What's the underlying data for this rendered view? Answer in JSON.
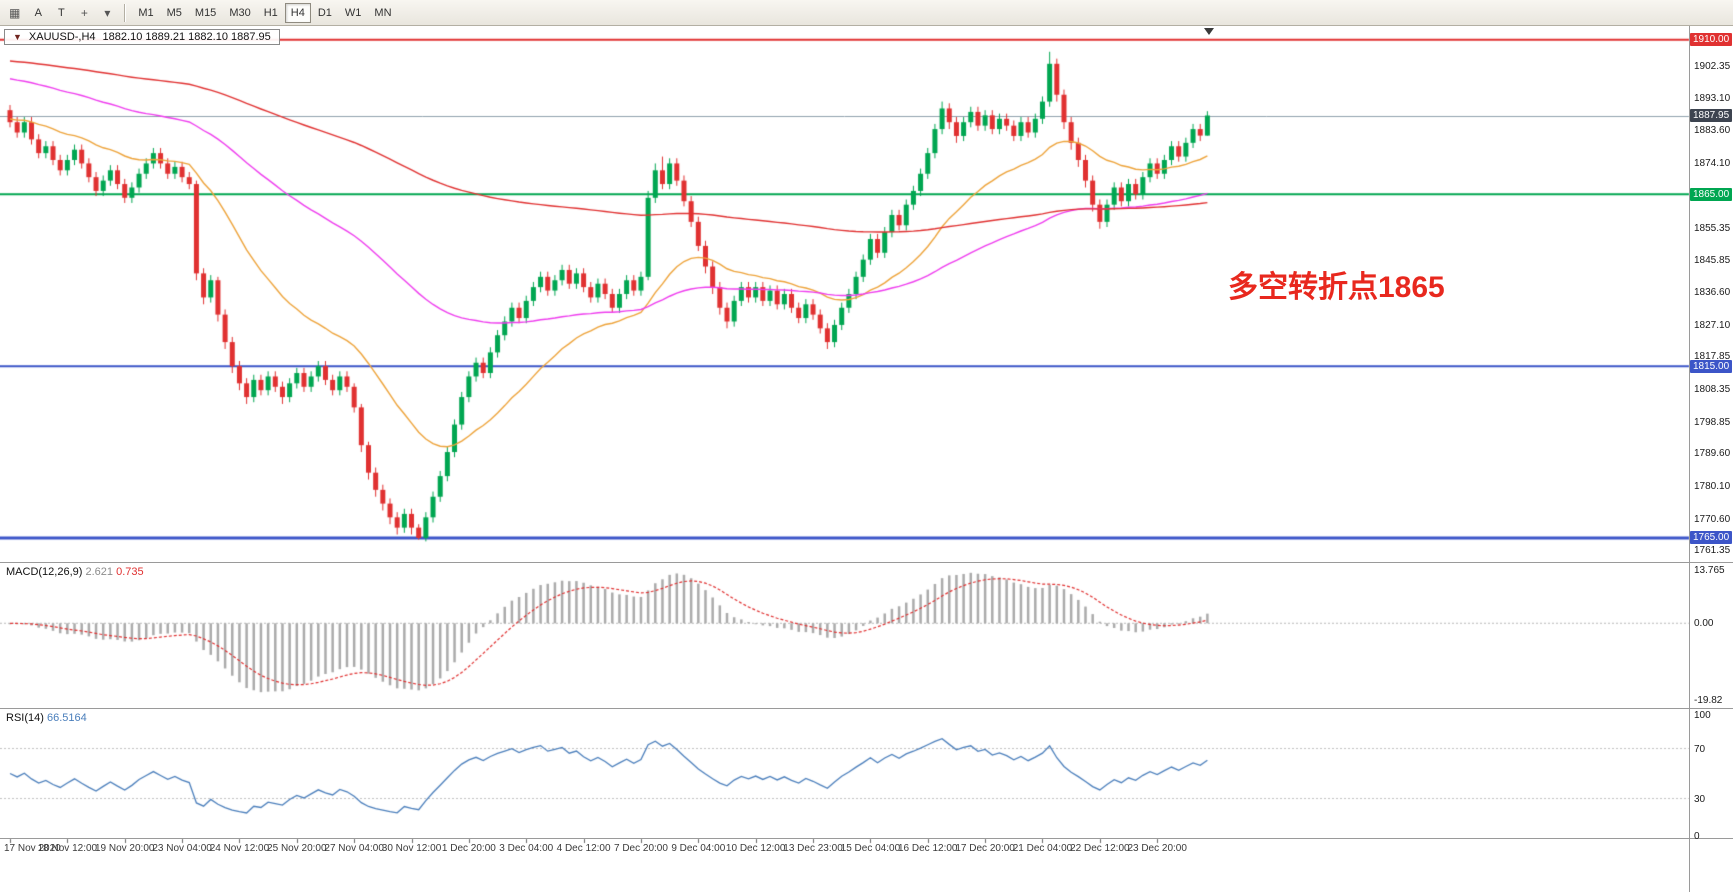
{
  "toolbar": {
    "tools": [
      {
        "name": "charts-grid-icon",
        "glyph": "▦"
      },
      {
        "name": "text-label-tool-button",
        "label": "A"
      },
      {
        "name": "text-tool-button",
        "label": "T"
      },
      {
        "name": "crosshair-icon",
        "glyph": "+"
      },
      {
        "name": "tools-dropdown-icon",
        "glyph": "▾"
      }
    ],
    "timeframes": [
      "M1",
      "M5",
      "M15",
      "M30",
      "H1",
      "H4",
      "D1",
      "W1",
      "MN"
    ],
    "active_timeframe": "H4"
  },
  "symbol_bar": {
    "collapse_glyph": "▼",
    "symbol": "XAUUSD-,H4",
    "ohlc_text": "1882.10 1889.21 1882.10 1887.95"
  },
  "annotation": {
    "text": "多空转折点1865",
    "color": "#e8281e"
  },
  "current_price": {
    "value": 1887.95,
    "label": "1887.95",
    "line_color": "#8fa0ad",
    "box_bg": "#3d4450"
  },
  "levels": [
    {
      "price": 1910.0,
      "label": "1910.00",
      "color": "#e03131",
      "width": 2
    },
    {
      "price": 1865.0,
      "label": "1865.00",
      "color": "#00a651",
      "width": 2
    },
    {
      "price": 1815.0,
      "label": "1815.00",
      "color": "#3c55c8",
      "width": 2
    },
    {
      "price": 1765.0,
      "label": "1765.00",
      "color": "#3c55c8",
      "width": 3
    }
  ],
  "price_ticks": [
    "1902.35",
    "1893.10",
    "1883.60",
    "1874.10",
    "1855.35",
    "1845.85",
    "1836.60",
    "1827.10",
    "1817.85",
    "1808.35",
    "1798.85",
    "1789.60",
    "1780.10",
    "1770.60",
    "1761.35"
  ],
  "indicators": {
    "macd": {
      "label": "MACD(12,26,9)",
      "main_value": "2.621",
      "signal_value": "0.735",
      "scale_labels": {
        "max": "13.765",
        "zero": "0.00",
        "min": "-19.82"
      },
      "scale_max": 13.765,
      "scale_min": -19.82,
      "histogram_color": "#ababab",
      "signal_color": "#e03131",
      "params": {
        "fast": 12,
        "slow": 26,
        "signal": 9
      }
    },
    "rsi": {
      "label": "RSI(14)",
      "value": "66.5164",
      "period": 14,
      "line_color": "#4a7ebb",
      "levels": [
        100,
        70,
        30,
        0
      ],
      "level_lines": [
        70,
        30
      ]
    }
  },
  "time_axis": {
    "candles_per_label": 8,
    "labels": [
      "17 Nov 2020",
      "18 Nov 12:00",
      "19 Nov 20:00",
      "23 Nov 04:00",
      "24 Nov 12:00",
      "25 Nov 20:00",
      "27 Nov 04:00",
      "30 Nov 12:00",
      "1 Dec 20:00",
      "3 Dec 04:00",
      "4 Dec 12:00",
      "7 Dec 20:00",
      "9 Dec 04:00",
      "10 Dec 12:00",
      "13 Dec 23:00",
      "15 Dec 04:00",
      "16 Dec 12:00",
      "17 Dec 20:00",
      "21 Dec 04:00",
      "22 Dec 12:00",
      "23 Dec 20:00"
    ]
  },
  "chart_data": {
    "type": "candlestick",
    "title": "XAUUSD-,H4",
    "ohlc_current": {
      "open": "1882.10",
      "high": "1889.21",
      "low": "1882.10",
      "close": "1887.95"
    },
    "up_color": "#00a651",
    "down_color": "#e03131",
    "price_range_top": 1914,
    "price_range_bottom": 1758,
    "moving_averages": [
      {
        "type": "ema",
        "period": 24,
        "seed": 1887,
        "color": "#eda33a"
      },
      {
        "type": "ema",
        "period": 75,
        "seed": 1899,
        "color": "#ee3cee"
      },
      {
        "type": "ema",
        "period": 200,
        "seed": 1904,
        "color": "#e03131"
      }
    ],
    "candles": [
      [
        1889.5,
        1891,
        1884.5,
        1886
      ],
      [
        1886,
        1887.5,
        1881.5,
        1883
      ],
      [
        1883,
        1887.5,
        1881.5,
        1886
      ],
      [
        1886,
        1887.5,
        1879.5,
        1881
      ],
      [
        1881,
        1882.5,
        1875.5,
        1877
      ],
      [
        1877,
        1880.5,
        1875.5,
        1879
      ],
      [
        1879,
        1880.5,
        1873.5,
        1875
      ],
      [
        1875,
        1876.5,
        1870.5,
        1872
      ],
      [
        1872,
        1876.5,
        1870.5,
        1875
      ],
      [
        1875,
        1879.5,
        1873.5,
        1878
      ],
      [
        1878,
        1879.5,
        1872.5,
        1874
      ],
      [
        1874,
        1875.5,
        1868.5,
        1870
      ],
      [
        1870,
        1871.5,
        1864.5,
        1866
      ],
      [
        1866,
        1870.5,
        1864.5,
        1869
      ],
      [
        1869,
        1873.5,
        1867.5,
        1872
      ],
      [
        1872,
        1873.5,
        1866.5,
        1868
      ],
      [
        1868,
        1869.5,
        1862.5,
        1864
      ],
      [
        1864,
        1868.5,
        1862.5,
        1867
      ],
      [
        1867,
        1872.5,
        1865.5,
        1871
      ],
      [
        1871,
        1875.5,
        1869.5,
        1874
      ],
      [
        1874,
        1878.5,
        1872.5,
        1877
      ],
      [
        1877,
        1878.5,
        1872.5,
        1874
      ],
      [
        1874,
        1875.5,
        1869.5,
        1871
      ],
      [
        1871,
        1874.5,
        1869.5,
        1873
      ],
      [
        1873,
        1874.5,
        1868.5,
        1870
      ],
      [
        1870,
        1871.5,
        1866.5,
        1868
      ],
      [
        1868,
        1869,
        1840,
        1842
      ],
      [
        1842,
        1843.5,
        1833,
        1835
      ],
      [
        1835,
        1841.5,
        1833.5,
        1840
      ],
      [
        1840,
        1841,
        1828,
        1830
      ],
      [
        1830,
        1831.5,
        1820,
        1822
      ],
      [
        1822,
        1823.5,
        1813,
        1815
      ],
      [
        1815,
        1816.5,
        1808,
        1810
      ],
      [
        1810,
        1811.5,
        1804,
        1806
      ],
      [
        1806,
        1812.5,
        1804.5,
        1811
      ],
      [
        1811,
        1812.5,
        1806.5,
        1808
      ],
      [
        1808,
        1813.5,
        1806.5,
        1812
      ],
      [
        1812,
        1813.5,
        1807.5,
        1809
      ],
      [
        1809,
        1810.5,
        1804,
        1806
      ],
      [
        1806,
        1811.5,
        1804.5,
        1810
      ],
      [
        1810,
        1814.5,
        1808.5,
        1813
      ],
      [
        1813,
        1814.5,
        1807.5,
        1809
      ],
      [
        1809,
        1813.5,
        1807.5,
        1812
      ],
      [
        1812,
        1816.5,
        1810.5,
        1815
      ],
      [
        1815,
        1816.5,
        1809.5,
        1811
      ],
      [
        1811,
        1812.5,
        1806.5,
        1808
      ],
      [
        1808,
        1813.5,
        1806.5,
        1812
      ],
      [
        1812,
        1813.5,
        1807.5,
        1809
      ],
      [
        1809,
        1810,
        1801.5,
        1803
      ],
      [
        1803,
        1804,
        1790,
        1792
      ],
      [
        1792,
        1793,
        1782,
        1784
      ],
      [
        1784,
        1785.5,
        1777,
        1779
      ],
      [
        1779,
        1780.5,
        1773,
        1775
      ],
      [
        1775,
        1776.5,
        1769,
        1771
      ],
      [
        1771,
        1772.5,
        1766,
        1768
      ],
      [
        1768,
        1773.5,
        1766.5,
        1772
      ],
      [
        1772,
        1773.5,
        1766,
        1768
      ],
      [
        1768,
        1769,
        1764.5,
        1765
      ],
      [
        1765,
        1772.5,
        1764,
        1771
      ],
      [
        1771,
        1778.5,
        1769.5,
        1777
      ],
      [
        1777,
        1784.5,
        1775.5,
        1783
      ],
      [
        1783,
        1791.5,
        1781.5,
        1790
      ],
      [
        1790,
        1799.5,
        1788.5,
        1798
      ],
      [
        1798,
        1807.5,
        1796.5,
        1806
      ],
      [
        1806,
        1813.5,
        1804.5,
        1812
      ],
      [
        1812,
        1817.5,
        1810.5,
        1816
      ],
      [
        1816,
        1817.5,
        1811.5,
        1813
      ],
      [
        1813,
        1820.5,
        1811.5,
        1819
      ],
      [
        1819,
        1825.5,
        1817.5,
        1824
      ],
      [
        1824,
        1829.5,
        1822.5,
        1828
      ],
      [
        1828,
        1833.5,
        1826.5,
        1832
      ],
      [
        1832,
        1833.5,
        1827.5,
        1829
      ],
      [
        1829,
        1835.5,
        1827.5,
        1834
      ],
      [
        1834,
        1839.5,
        1832.5,
        1838
      ],
      [
        1838,
        1842.5,
        1836.5,
        1841
      ],
      [
        1841,
        1842.5,
        1835.5,
        1837
      ],
      [
        1837,
        1841.5,
        1835.5,
        1840
      ],
      [
        1840,
        1844.5,
        1838.5,
        1843
      ],
      [
        1843,
        1844.5,
        1837.5,
        1839
      ],
      [
        1839,
        1843.5,
        1837.5,
        1842
      ],
      [
        1842,
        1843.5,
        1836.5,
        1838
      ],
      [
        1838,
        1839.5,
        1833.5,
        1835
      ],
      [
        1835,
        1840.5,
        1833.5,
        1839
      ],
      [
        1839,
        1840.5,
        1834.5,
        1836
      ],
      [
        1836,
        1837.5,
        1830.5,
        1832
      ],
      [
        1832,
        1837.5,
        1830.5,
        1836
      ],
      [
        1836,
        1841.5,
        1834.5,
        1840
      ],
      [
        1840,
        1841.5,
        1835.5,
        1837
      ],
      [
        1837,
        1842.5,
        1835.5,
        1841
      ],
      [
        1841,
        1866,
        1840,
        1864
      ],
      [
        1864,
        1874,
        1862.5,
        1872
      ],
      [
        1872,
        1876,
        1866.5,
        1868
      ],
      [
        1868,
        1875.5,
        1866.5,
        1874
      ],
      [
        1874,
        1875.5,
        1867.5,
        1869
      ],
      [
        1869,
        1870.5,
        1861.5,
        1863
      ],
      [
        1863,
        1864.5,
        1855.5,
        1857
      ],
      [
        1857,
        1858.5,
        1848.5,
        1850
      ],
      [
        1850,
        1851.5,
        1842,
        1844
      ],
      [
        1844,
        1845.5,
        1836,
        1838
      ],
      [
        1838,
        1839.5,
        1830,
        1832
      ],
      [
        1832,
        1833.5,
        1826,
        1828
      ],
      [
        1828,
        1835.5,
        1826.5,
        1834
      ],
      [
        1834,
        1839.5,
        1832.5,
        1838
      ],
      [
        1838,
        1839.5,
        1833.5,
        1835
      ],
      [
        1835,
        1839.5,
        1833.5,
        1838
      ],
      [
        1838,
        1839.5,
        1832.5,
        1834
      ],
      [
        1834,
        1838.5,
        1832.5,
        1837
      ],
      [
        1837,
        1838.5,
        1831.5,
        1833
      ],
      [
        1833,
        1837.5,
        1831.5,
        1836
      ],
      [
        1836,
        1837.5,
        1830.5,
        1832
      ],
      [
        1832,
        1833.5,
        1827.5,
        1829
      ],
      [
        1829,
        1834.5,
        1827.5,
        1833
      ],
      [
        1833,
        1834.5,
        1828.5,
        1830
      ],
      [
        1830,
        1831.5,
        1824.5,
        1826
      ],
      [
        1826,
        1827.5,
        1820,
        1822
      ],
      [
        1822,
        1828.5,
        1820.5,
        1827
      ],
      [
        1827,
        1833.5,
        1825.5,
        1832
      ],
      [
        1832,
        1837.5,
        1830.5,
        1836
      ],
      [
        1836,
        1842.5,
        1834.5,
        1841
      ],
      [
        1841,
        1847.5,
        1839.5,
        1846
      ],
      [
        1846,
        1853.5,
        1844.5,
        1852
      ],
      [
        1852,
        1853.5,
        1846.5,
        1848
      ],
      [
        1848,
        1855.5,
        1846.5,
        1854
      ],
      [
        1854,
        1860.5,
        1852.5,
        1859
      ],
      [
        1859,
        1860.5,
        1854.5,
        1856
      ],
      [
        1856,
        1863.5,
        1854.5,
        1862
      ],
      [
        1862,
        1867.5,
        1860.5,
        1866
      ],
      [
        1866,
        1872.5,
        1864.5,
        1871
      ],
      [
        1871,
        1878.5,
        1869.5,
        1877
      ],
      [
        1877,
        1885.5,
        1875.5,
        1884
      ],
      [
        1884,
        1892,
        1882.5,
        1890
      ],
      [
        1890,
        1891.5,
        1884,
        1886
      ],
      [
        1886,
        1887.5,
        1880,
        1882
      ],
      [
        1882,
        1887.5,
        1880.5,
        1886
      ],
      [
        1886,
        1890.5,
        1884.5,
        1889
      ],
      [
        1889,
        1890.5,
        1883.5,
        1885
      ],
      [
        1885,
        1889.5,
        1883.5,
        1888
      ],
      [
        1888,
        1889.5,
        1882.5,
        1884
      ],
      [
        1884,
        1888.5,
        1882.5,
        1887
      ],
      [
        1887,
        1888.5,
        1883.5,
        1885
      ],
      [
        1885,
        1886.5,
        1880.5,
        1882
      ],
      [
        1882,
        1887.5,
        1880.5,
        1886
      ],
      [
        1886,
        1887.5,
        1881.5,
        1883
      ],
      [
        1883,
        1888.5,
        1881.5,
        1887
      ],
      [
        1887,
        1893.5,
        1885.5,
        1892
      ],
      [
        1892,
        1906.5,
        1890.5,
        1903
      ],
      [
        1903,
        1904.5,
        1892,
        1894
      ],
      [
        1894,
        1895.5,
        1884,
        1886
      ],
      [
        1886,
        1887.5,
        1878,
        1880
      ],
      [
        1880,
        1881.5,
        1873,
        1875
      ],
      [
        1875,
        1876.5,
        1867,
        1869
      ],
      [
        1869,
        1870.5,
        1860,
        1862
      ],
      [
        1862,
        1863.5,
        1855,
        1857
      ],
      [
        1857,
        1863.5,
        1855.5,
        1862
      ],
      [
        1862,
        1868.5,
        1860.5,
        1867
      ],
      [
        1867,
        1868.5,
        1861.5,
        1863
      ],
      [
        1863,
        1869.5,
        1861.5,
        1868
      ],
      [
        1868,
        1869.5,
        1863.5,
        1865
      ],
      [
        1865,
        1871.5,
        1863.5,
        1870
      ],
      [
        1870,
        1875.5,
        1868.5,
        1874
      ],
      [
        1874,
        1875.5,
        1869.5,
        1871
      ],
      [
        1871,
        1876.5,
        1869.5,
        1875
      ],
      [
        1875,
        1880.5,
        1873.5,
        1879
      ],
      [
        1879,
        1880.5,
        1874.5,
        1876
      ],
      [
        1876,
        1881.5,
        1874.5,
        1880
      ],
      [
        1880,
        1885.5,
        1878.5,
        1884
      ],
      [
        1884,
        1885.5,
        1880.5,
        1882.1
      ],
      [
        1882.1,
        1889.21,
        1882.1,
        1887.95
      ]
    ]
  }
}
